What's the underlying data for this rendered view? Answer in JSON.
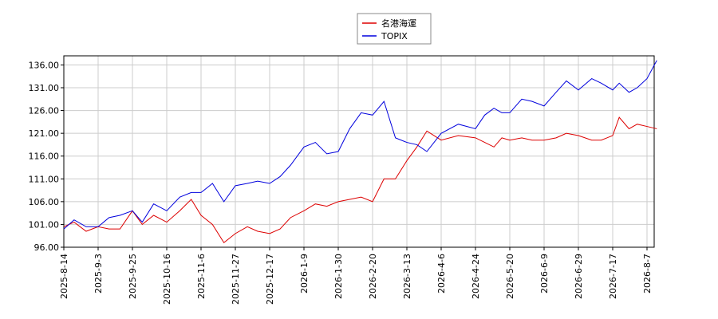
{
  "chart_data": {
    "type": "line",
    "x": [
      "2025-8-14",
      "2025-8-20",
      "2025-8-27",
      "2025-9-3",
      "2025-9-10",
      "2025-9-17",
      "2025-9-25",
      "2025-10-1",
      "2025-10-8",
      "2025-10-16",
      "2025-10-24",
      "2025-10-31",
      "2025-11-6",
      "2025-11-13",
      "2025-11-20",
      "2025-11-27",
      "2025-12-4",
      "2025-12-10",
      "2025-12-17",
      "2025-12-24",
      "2025-12-31",
      "2026-1-9",
      "2026-1-16",
      "2026-1-23",
      "2026-1-30",
      "2026-2-6",
      "2026-2-13",
      "2026-2-20",
      "2026-2-27",
      "2026-3-6",
      "2026-3-13",
      "2026-3-20",
      "2026-3-27",
      "2026-4-6",
      "2026-4-15",
      "2026-4-24",
      "2026-5-1",
      "2026-5-8",
      "2026-5-14",
      "2026-5-20",
      "2026-5-27",
      "2026-6-2",
      "2026-6-9",
      "2026-6-16",
      "2026-6-22",
      "2026-6-29",
      "2026-7-6",
      "2026-7-11",
      "2026-7-17",
      "2026-7-21",
      "2026-7-27",
      "2026-8-1",
      "2026-8-7",
      "2026-8-13"
    ],
    "series": [
      {
        "name": "名港海運",
        "color": "#dd0000",
        "values": [
          100.5,
          101.5,
          99.5,
          100.5,
          100,
          100,
          104,
          101,
          103,
          101.5,
          104,
          106.5,
          103,
          101,
          97,
          99,
          100.5,
          99.5,
          99,
          100,
          102.5,
          104,
          105.5,
          105,
          106,
          106.5,
          107,
          106,
          111,
          111,
          115,
          118,
          121.5,
          119.5,
          120.5,
          120,
          119,
          118,
          120,
          119.5,
          120,
          119.5,
          119.5,
          120,
          121,
          120.5,
          119.5,
          119.5,
          120.5,
          124.5,
          122,
          123,
          122.5,
          122
        ]
      },
      {
        "name": "TOPIX",
        "color": "#0000dd",
        "values": [
          100,
          102,
          100.5,
          100.5,
          102.5,
          103,
          104,
          101.5,
          105.5,
          104,
          107,
          108,
          108,
          110,
          106,
          109.5,
          110,
          110.5,
          110,
          111.5,
          114,
          118,
          119,
          116.5,
          117,
          122,
          125.5,
          125,
          128,
          120,
          119,
          118.5,
          117,
          121,
          123,
          122,
          125,
          126.5,
          125.5,
          125.5,
          128.5,
          128,
          127,
          130,
          132.5,
          130.5,
          133,
          132,
          130.5,
          132,
          130,
          131,
          133,
          137
        ]
      }
    ],
    "xlim": [
      "2025-8-14",
      "2026-8-13"
    ],
    "xticks": [
      "2025-8-14",
      "2025-9-3",
      "2025-9-25",
      "2025-10-16",
      "2025-11-6",
      "2025-11-27",
      "2025-12-17",
      "2026-1-9",
      "2026-1-30",
      "2026-2-20",
      "2026-3-13",
      "2026-4-6",
      "2026-4-24",
      "2026-5-20",
      "2026-6-9",
      "2026-6-29",
      "2026-7-17",
      "2026-8-7"
    ],
    "ylim": [
      96,
      138
    ],
    "yticks": [
      {
        "value": 96,
        "label": "96.00"
      },
      {
        "value": 101,
        "label": "101.00"
      },
      {
        "value": 106,
        "label": "106.00"
      },
      {
        "value": 111,
        "label": "111.00"
      },
      {
        "value": 116,
        "label": "116.00"
      },
      {
        "value": 121,
        "label": "121.00"
      },
      {
        "value": 126,
        "label": "126.00"
      },
      {
        "value": 131,
        "label": "131.00"
      },
      {
        "value": 136,
        "label": "136.00"
      }
    ],
    "grid": true,
    "legend": "top"
  }
}
